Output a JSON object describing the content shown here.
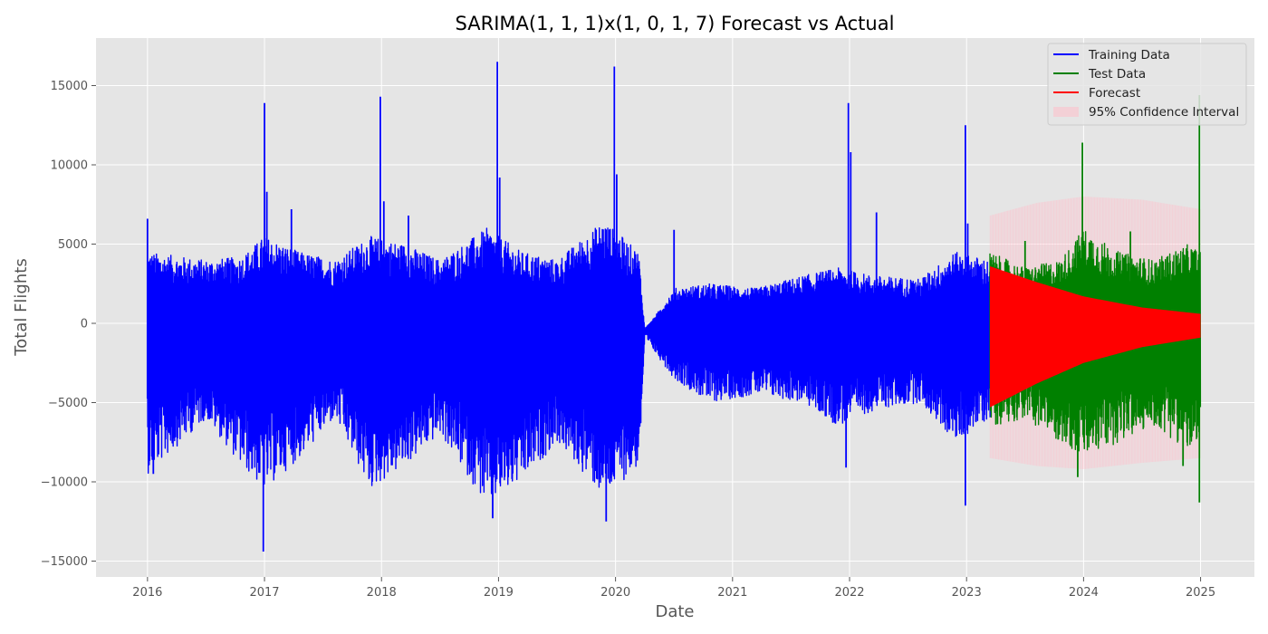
{
  "chart_data": {
    "type": "line",
    "title": "SARIMA(1, 1, 1)x(1, 0, 1, 7) Forecast vs Actual",
    "xlabel": "Date",
    "ylabel": "Total Flights",
    "xlim": [
      2015.56,
      2025.46
    ],
    "ylim": [
      -16000,
      18000
    ],
    "x_ticks": [
      2016,
      2017,
      2018,
      2019,
      2020,
      2021,
      2022,
      2023,
      2024,
      2025
    ],
    "x_tick_labels": [
      "2016",
      "2017",
      "2018",
      "2019",
      "2020",
      "2021",
      "2022",
      "2023",
      "2024",
      "2025"
    ],
    "y_ticks": [
      -15000,
      -10000,
      -5000,
      0,
      5000,
      10000,
      15000
    ],
    "y_tick_labels": [
      "−15000",
      "−10000",
      "−5000",
      "0",
      "5000",
      "10000",
      "15000"
    ],
    "grid": true,
    "background": "#e5e5e5",
    "legend_position": "top-right",
    "series": [
      {
        "name": "Training Data",
        "color": "#0000ff",
        "render": "oscillation-envelope",
        "x_range": [
          2016.0,
          2023.2
        ],
        "upper": [
          [
            2016.0,
            4500
          ],
          [
            2016.5,
            4000
          ],
          [
            2016.8,
            4200
          ],
          [
            2017.0,
            5500
          ],
          [
            2017.3,
            4500
          ],
          [
            2017.6,
            4000
          ],
          [
            2017.9,
            5500
          ],
          [
            2018.2,
            5000
          ],
          [
            2018.5,
            4000
          ],
          [
            2018.9,
            6000
          ],
          [
            2019.2,
            4500
          ],
          [
            2019.5,
            4000
          ],
          [
            2019.9,
            6500
          ],
          [
            2020.2,
            4500
          ],
          [
            2020.25,
            -500
          ],
          [
            2020.5,
            2200
          ],
          [
            2020.8,
            2500
          ],
          [
            2021.2,
            2200
          ],
          [
            2021.6,
            3000
          ],
          [
            2021.9,
            3500
          ],
          [
            2022.2,
            3000
          ],
          [
            2022.6,
            2800
          ],
          [
            2022.9,
            4500
          ],
          [
            2023.2,
            4000
          ]
        ],
        "lower": [
          [
            2016.0,
            -9500
          ],
          [
            2016.5,
            -6000
          ],
          [
            2016.8,
            -9000
          ],
          [
            2017.0,
            -10500
          ],
          [
            2017.3,
            -8500
          ],
          [
            2017.6,
            -6000
          ],
          [
            2017.9,
            -10500
          ],
          [
            2018.2,
            -9000
          ],
          [
            2018.5,
            -7000
          ],
          [
            2018.9,
            -11500
          ],
          [
            2019.2,
            -10000
          ],
          [
            2019.5,
            -7500
          ],
          [
            2019.9,
            -11000
          ],
          [
            2020.2,
            -9000
          ],
          [
            2020.25,
            -1000
          ],
          [
            2020.5,
            -3500
          ],
          [
            2020.8,
            -5000
          ],
          [
            2021.2,
            -4500
          ],
          [
            2021.6,
            -5000
          ],
          [
            2021.9,
            -6500
          ],
          [
            2022.2,
            -5500
          ],
          [
            2022.6,
            -5000
          ],
          [
            2022.9,
            -7500
          ],
          [
            2023.2,
            -6000
          ]
        ],
        "spikes": [
          [
            2016.0,
            6600
          ],
          [
            2016.05,
            -9500
          ],
          [
            2017.0,
            13900
          ],
          [
            2016.99,
            -14400
          ],
          [
            2017.02,
            8300
          ],
          [
            2017.23,
            7200
          ],
          [
            2017.99,
            14300
          ],
          [
            2018.02,
            7700
          ],
          [
            2018.23,
            6800
          ],
          [
            2018.99,
            16500
          ],
          [
            2019.01,
            9200
          ],
          [
            2018.95,
            -12300
          ],
          [
            2019.99,
            16200
          ],
          [
            2020.01,
            9400
          ],
          [
            2019.92,
            -12500
          ],
          [
            2020.5,
            5900
          ],
          [
            2021.99,
            13900
          ],
          [
            2022.01,
            10800
          ],
          [
            2021.97,
            -9100
          ],
          [
            2022.23,
            7000
          ],
          [
            2022.99,
            12500
          ],
          [
            2023.01,
            6300
          ],
          [
            2022.99,
            -11500
          ]
        ]
      },
      {
        "name": "Test Data",
        "color": "#008000",
        "render": "oscillation-envelope",
        "x_range": [
          2023.2,
          2025.0
        ],
        "upper": [
          [
            2023.2,
            4500
          ],
          [
            2023.5,
            3500
          ],
          [
            2023.8,
            4000
          ],
          [
            2024.0,
            6000
          ],
          [
            2024.3,
            4500
          ],
          [
            2024.6,
            4000
          ],
          [
            2024.9,
            5000
          ],
          [
            2025.0,
            4500
          ]
        ],
        "lower": [
          [
            2023.2,
            -6500
          ],
          [
            2023.5,
            -6000
          ],
          [
            2023.8,
            -7500
          ],
          [
            2024.0,
            -8500
          ],
          [
            2024.3,
            -7500
          ],
          [
            2024.6,
            -6500
          ],
          [
            2024.9,
            -8000
          ],
          [
            2025.0,
            -8500
          ]
        ],
        "spikes": [
          [
            2023.99,
            11400
          ],
          [
            2023.95,
            -9700
          ],
          [
            2024.99,
            14400
          ],
          [
            2024.99,
            -11300
          ],
          [
            2024.85,
            -9000
          ],
          [
            2024.4,
            5800
          ],
          [
            2023.5,
            5200
          ]
        ]
      },
      {
        "name": "Forecast",
        "color": "#ff0000",
        "render": "band",
        "upper": [
          [
            2023.2,
            3600
          ],
          [
            2023.6,
            2600
          ],
          [
            2024.0,
            1700
          ],
          [
            2024.5,
            1000
          ],
          [
            2025.0,
            600
          ]
        ],
        "lower": [
          [
            2023.2,
            -5300
          ],
          [
            2023.6,
            -3800
          ],
          [
            2024.0,
            -2500
          ],
          [
            2024.5,
            -1500
          ],
          [
            2025.0,
            -900
          ]
        ]
      },
      {
        "name": "95% Confidence Interval",
        "color": "#ffc0cb",
        "opacity": 0.35,
        "render": "band",
        "upper": [
          [
            2023.2,
            6800
          ],
          [
            2023.6,
            7600
          ],
          [
            2024.0,
            8000
          ],
          [
            2024.5,
            7800
          ],
          [
            2025.0,
            7200
          ]
        ],
        "lower": [
          [
            2023.2,
            -8500
          ],
          [
            2023.6,
            -9000
          ],
          [
            2024.0,
            -9200
          ],
          [
            2024.5,
            -8800
          ],
          [
            2025.0,
            -8500
          ]
        ]
      }
    ]
  }
}
